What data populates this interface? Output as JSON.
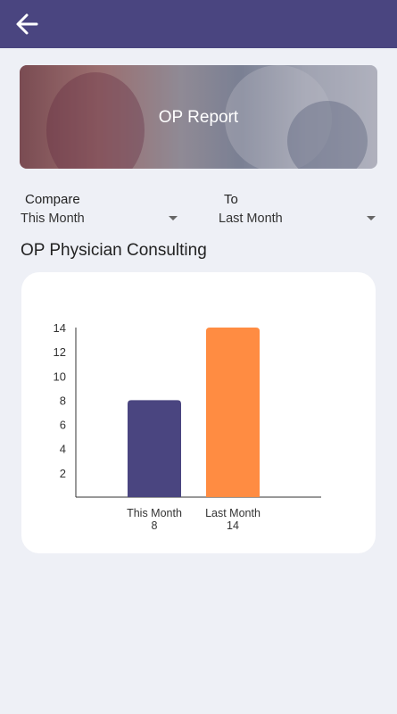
{
  "header": {
    "back_icon": "arrow-left-icon",
    "color": "#4a4580"
  },
  "banner": {
    "title": "OP Report"
  },
  "compare": {
    "from_label": "Compare",
    "from_value": "This Month",
    "to_label": "To",
    "to_value": "Last Month"
  },
  "section": {
    "title": "OP Physician Consulting"
  },
  "chart_data": {
    "type": "bar",
    "categories": [
      "This Month",
      "Last Month"
    ],
    "values": [
      8,
      14
    ],
    "value_labels": [
      "8",
      "14"
    ],
    "colors": [
      "#4a4580",
      "#ff8c42"
    ],
    "yticks": [
      "2",
      "4",
      "6",
      "8",
      "10",
      "12",
      "14"
    ],
    "ylim": [
      0,
      14
    ],
    "title": "",
    "xlabel": "",
    "ylabel": ""
  }
}
